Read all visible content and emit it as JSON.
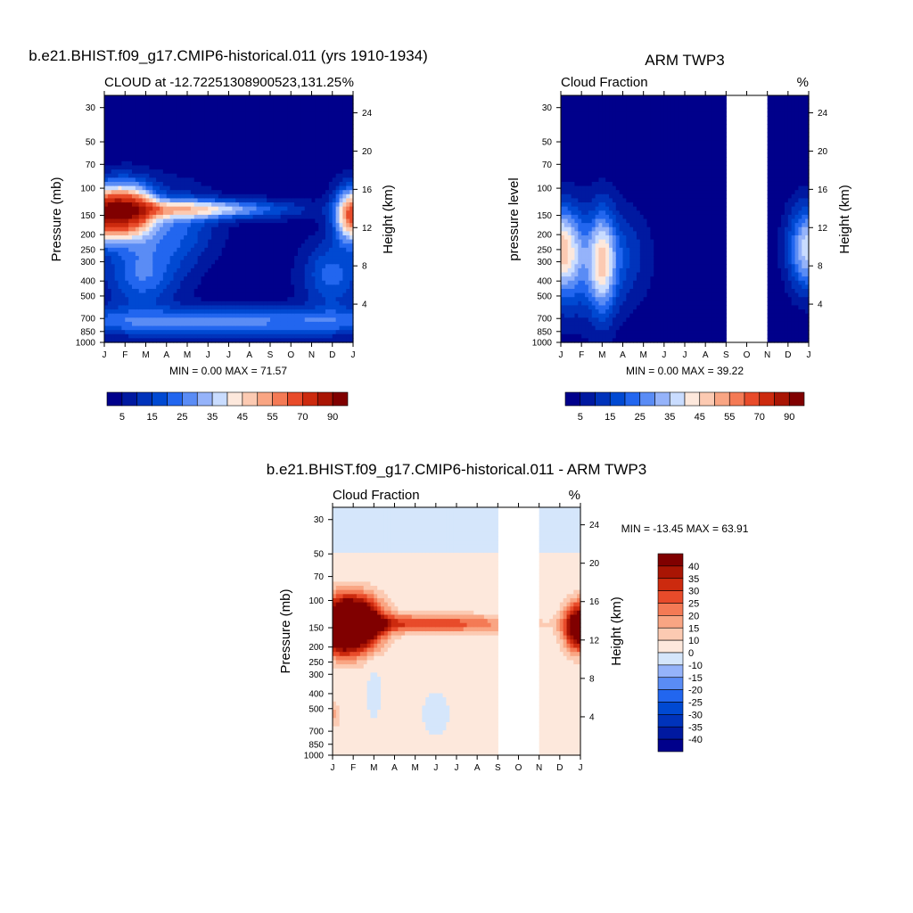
{
  "figure": {
    "panels": [
      {
        "main_title": "b.e21.BHIST.f09_g17.CMIP6-historical.011 (yrs 1910-1934)",
        "left_title": "CLOUD at -12.72251308900523,131.25",
        "right_title": "%",
        "ylabel": "Pressure (mb)",
        "right_label": "Height (km)",
        "stats": "MIN =   0.00 MAX =  71.57"
      },
      {
        "main_title": "ARM TWP3",
        "left_title": "Cloud Fraction",
        "right_title": "%",
        "ylabel": "pressure level",
        "right_label": "Height (km)",
        "stats": "MIN =   0.00 MAX =  39.22"
      },
      {
        "main_title": "b.e21.BHIST.f09_g17.CMIP6-historical.011 - ARM TWP3",
        "left_title": "Cloud Fraction",
        "right_title": "%",
        "ylabel": "Pressure (mb)",
        "right_label": "Height (km)",
        "stats": "MIN = -13.45 MAX =  63.91"
      }
    ]
  },
  "chart_data": [
    {
      "type": "heatmap",
      "title": "b.e21.BHIST.f09_g17.CMIP6-historical.011 (yrs 1910-1934)",
      "subtitle": "CLOUD at -12.72251308900523,131.25",
      "units": "%",
      "x_ticks": [
        "J",
        "F",
        "M",
        "A",
        "M",
        "J",
        "J",
        "A",
        "S",
        "O",
        "N",
        "D",
        "J"
      ],
      "y_ticks": [
        30,
        50,
        70,
        100,
        150,
        200,
        250,
        300,
        400,
        500,
        700,
        850,
        1000
      ],
      "y_scale": "log",
      "y_inverted": true,
      "ylim_mb": [
        1000,
        25
      ],
      "height_ticks_km": [
        24,
        20,
        16,
        12,
        8,
        4
      ],
      "ylabel": "Pressure (mb)",
      "right_axis_label": "Height (km)",
      "min": 0.0,
      "max": 71.57,
      "missing_months": [],
      "levels": [
        5,
        10,
        15,
        20,
        25,
        30,
        35,
        40,
        45,
        50,
        55,
        60,
        70,
        80,
        90
      ],
      "colors": [
        "#00008b",
        "#0019a0",
        "#0033bb",
        "#0049d2",
        "#2266ef",
        "#5a8cf5",
        "#95b3fa",
        "#c9dcff",
        "#fde8dc",
        "#fccab2",
        "#f9a583",
        "#f47a55",
        "#e84b2a",
        "#cc2a0e",
        "#a91504",
        "#800000"
      ],
      "colorbar_labels": [
        5,
        15,
        25,
        35,
        45,
        55,
        70,
        90
      ],
      "blobs": [
        {
          "x": 1.2,
          "y": 4.95,
          "sx": 0.85,
          "sy": 0.28,
          "amp": 70
        },
        {
          "x": 12.0,
          "y": 5.0,
          "sx": 0.6,
          "sy": 0.28,
          "amp": 62
        },
        {
          "x": 0.0,
          "y": 5.0,
          "sx": 0.6,
          "sy": 0.28,
          "amp": 55
        },
        {
          "x": 4.5,
          "y": 4.92,
          "sx": 3.0,
          "sy": 0.1,
          "amp": 36
        },
        {
          "x": 6.0,
          "y": 6.6,
          "sx": 9.0,
          "sy": 0.15,
          "amp": 24
        },
        {
          "x": 1.8,
          "y": 5.9,
          "sx": 1.2,
          "sy": 0.35,
          "amp": 22
        },
        {
          "x": 11.0,
          "y": 5.9,
          "sx": 1.0,
          "sy": 0.35,
          "amp": 20
        },
        {
          "x": 3.5,
          "y": 5.2,
          "sx": 1.3,
          "sy": 0.4,
          "amp": 18
        }
      ],
      "base_value": 2,
      "blank_x_ranges": []
    },
    {
      "type": "heatmap",
      "title": "ARM TWP3",
      "subtitle": "Cloud Fraction",
      "units": "%",
      "x_ticks": [
        "J",
        "F",
        "M",
        "A",
        "M",
        "J",
        "J",
        "A",
        "S",
        "O",
        "N",
        "D",
        "J"
      ],
      "y_ticks": [
        30,
        50,
        70,
        100,
        150,
        200,
        250,
        300,
        400,
        500,
        700,
        850,
        1000
      ],
      "y_scale": "log",
      "y_inverted": true,
      "ylim_mb": [
        1000,
        25
      ],
      "height_ticks_km": [
        24,
        20,
        16,
        12,
        8,
        4
      ],
      "ylabel": "pressure level",
      "right_axis_label": "Height (km)",
      "min": 0.0,
      "max": 39.22,
      "missing_months": [
        "S",
        "O"
      ],
      "levels": [
        5,
        10,
        15,
        20,
        25,
        30,
        35,
        40,
        45,
        50,
        55,
        60,
        70,
        80,
        90
      ],
      "colors": [
        "#00008b",
        "#0019a0",
        "#0033bb",
        "#0049d2",
        "#2266ef",
        "#5a8cf5",
        "#95b3fa",
        "#c9dcff",
        "#fde8dc",
        "#fccab2",
        "#f9a583",
        "#f47a55",
        "#e84b2a",
        "#cc2a0e",
        "#a91504",
        "#800000"
      ],
      "colorbar_labels": [
        5,
        15,
        25,
        35,
        45,
        55,
        70,
        90
      ],
      "blobs": [
        {
          "x": 0.0,
          "y": 5.5,
          "sx": 0.7,
          "sy": 0.45,
          "amp": 38
        },
        {
          "x": 12.0,
          "y": 5.5,
          "sx": 0.7,
          "sy": 0.45,
          "amp": 38
        },
        {
          "x": 2.0,
          "y": 5.7,
          "sx": 0.45,
          "sy": 0.55,
          "amp": 30
        },
        {
          "x": 1.0,
          "y": 5.8,
          "sx": 1.5,
          "sy": 0.6,
          "amp": 14
        },
        {
          "x": 3.0,
          "y": 5.6,
          "sx": 1.0,
          "sy": 0.5,
          "amp": 10
        }
      ],
      "base_value": 1,
      "blank_x_ranges": [
        [
          8,
          10
        ]
      ]
    },
    {
      "type": "heatmap",
      "title": "b.e21.BHIST.f09_g17.CMIP6-historical.011 - ARM TWP3",
      "subtitle": "Cloud Fraction",
      "units": "%",
      "x_ticks": [
        "J",
        "F",
        "M",
        "A",
        "M",
        "J",
        "J",
        "A",
        "S",
        "O",
        "N",
        "D",
        "J"
      ],
      "y_ticks": [
        30,
        50,
        70,
        100,
        150,
        200,
        250,
        300,
        400,
        500,
        700,
        850,
        1000
      ],
      "y_scale": "log",
      "y_inverted": true,
      "ylim_mb": [
        1000,
        25
      ],
      "height_ticks_km": [
        24,
        20,
        16,
        12,
        8,
        4
      ],
      "ylabel": "Pressure (mb)",
      "right_axis_label": "Height (km)",
      "min": -13.45,
      "max": 63.91,
      "missing_months": [
        "S",
        "O"
      ],
      "levels": [
        -40,
        -35,
        -30,
        -25,
        -20,
        -15,
        -10,
        0,
        10,
        15,
        20,
        25,
        30,
        35,
        40
      ],
      "colors": [
        "#00008b",
        "#0019a0",
        "#0033bb",
        "#0049d2",
        "#2266ef",
        "#5a8cf5",
        "#95b3fa",
        "#d5e6fb",
        "#fde8dc",
        "#fccab2",
        "#f9a583",
        "#f47a55",
        "#e84b2a",
        "#cc2a0e",
        "#a91504",
        "#800000"
      ],
      "colorbar_labels": [
        40,
        35,
        30,
        25,
        20,
        15,
        10,
        0,
        -10,
        -15,
        -20,
        -25,
        -30,
        -35,
        -40
      ],
      "blobs": [
        {
          "x": 1.2,
          "y": 4.95,
          "sx": 0.85,
          "sy": 0.28,
          "amp": 62
        },
        {
          "x": 12.0,
          "y": 5.0,
          "sx": 0.55,
          "sy": 0.25,
          "amp": 55
        },
        {
          "x": 0.3,
          "y": 5.0,
          "sx": 0.6,
          "sy": 0.28,
          "amp": 40
        },
        {
          "x": 4.5,
          "y": 4.95,
          "sx": 3.2,
          "sy": 0.1,
          "amp": 25
        },
        {
          "x": 2.0,
          "y": 6.0,
          "sx": 0.25,
          "sy": 0.3,
          "amp": -12
        },
        {
          "x": 5.0,
          "y": 6.3,
          "sx": 0.5,
          "sy": 0.25,
          "amp": -11
        },
        {
          "x": 0.0,
          "y": 6.3,
          "sx": 0.3,
          "sy": 0.15,
          "amp": 12
        }
      ],
      "base_value": 5,
      "top_value": -5,
      "top_split_mb": 50,
      "blank_x_ranges": [
        [
          8,
          10
        ]
      ]
    }
  ]
}
